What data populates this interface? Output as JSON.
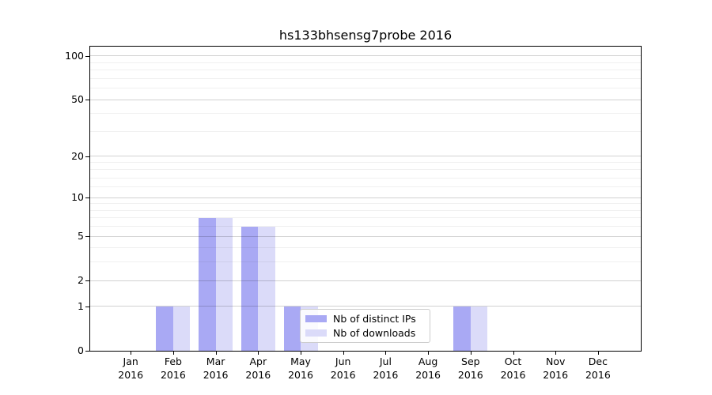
{
  "chart_data": {
    "type": "bar",
    "title": "hs133bhsensg7probe 2016",
    "x": {
      "months": [
        "Jan",
        "Feb",
        "Mar",
        "Apr",
        "May",
        "Jun",
        "Jul",
        "Aug",
        "Sep",
        "Oct",
        "Nov",
        "Dec"
      ],
      "year": "2016"
    },
    "series": [
      {
        "name": "Nb of distinct IPs",
        "color": "#a9a9f4",
        "values": [
          0,
          1,
          7,
          6,
          1,
          0,
          0,
          0,
          1,
          0,
          0,
          0
        ]
      },
      {
        "name": "Nb of downloads",
        "color": "#dbdbf9",
        "values": [
          0,
          1,
          7,
          6,
          1,
          0,
          0,
          0,
          1,
          0,
          0,
          0
        ]
      }
    ],
    "yscale": "log1p",
    "ylim": [
      0,
      116
    ],
    "y_major_ticks": [
      0,
      1,
      2,
      5,
      10,
      20,
      50,
      100
    ],
    "y_minor_ticks": [
      3,
      4,
      6,
      7,
      8,
      9,
      12,
      14,
      16,
      18,
      30,
      40,
      60,
      70,
      80,
      90
    ],
    "grid": true,
    "legend_position": "lower center"
  },
  "colors": {
    "background": "#ffffff",
    "spine": "#000000",
    "bar_distinct_ips": "#a9a9f4",
    "bar_downloads": "#dbdbf9"
  }
}
